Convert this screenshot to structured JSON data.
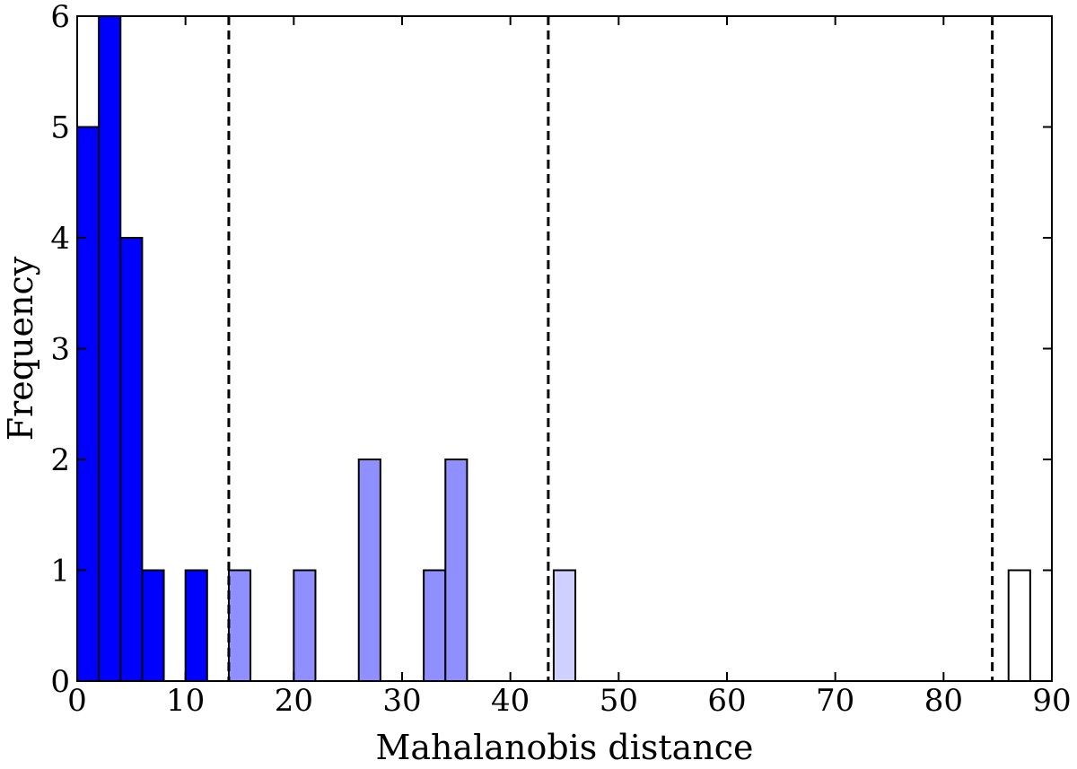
{
  "chart_data": {
    "type": "bar",
    "xlabel": "Mahalanobis distance",
    "ylabel": "Frequency",
    "xlim": [
      0,
      90
    ],
    "ylim": [
      0,
      6
    ],
    "xticks": [
      0,
      10,
      20,
      30,
      40,
      50,
      60,
      70,
      80,
      90
    ],
    "yticks": [
      0,
      1,
      2,
      3,
      4,
      5,
      6
    ],
    "xtick_labels": [
      "0",
      "10",
      "20",
      "30",
      "40",
      "50",
      "60",
      "70",
      "80",
      "90"
    ],
    "ytick_labels": [
      "0",
      "1",
      "2",
      "3",
      "4",
      "5",
      "6"
    ],
    "grid": false,
    "thresholds": [
      14,
      43.5,
      84.5
    ],
    "bin_width": 2,
    "bins": [
      {
        "x0": 0,
        "x1": 2,
        "value": 5,
        "group": "dark"
      },
      {
        "x0": 2,
        "x1": 4,
        "value": 6,
        "group": "dark"
      },
      {
        "x0": 4,
        "x1": 6,
        "value": 4,
        "group": "dark"
      },
      {
        "x0": 6,
        "x1": 8,
        "value": 1,
        "group": "dark"
      },
      {
        "x0": 10,
        "x1": 12,
        "value": 1,
        "group": "dark"
      },
      {
        "x0": 14,
        "x1": 16,
        "value": 1,
        "group": "medium"
      },
      {
        "x0": 20,
        "x1": 22,
        "value": 1,
        "group": "medium"
      },
      {
        "x0": 26,
        "x1": 28,
        "value": 2,
        "group": "medium"
      },
      {
        "x0": 32,
        "x1": 34,
        "value": 1,
        "group": "medium"
      },
      {
        "x0": 34,
        "x1": 36,
        "value": 2,
        "group": "medium"
      },
      {
        "x0": 44,
        "x1": 46,
        "value": 1,
        "group": "light"
      },
      {
        "x0": 86,
        "x1": 88,
        "value": 1,
        "group": "white"
      }
    ],
    "colors": {
      "dark": "#0000ff",
      "medium": "#8f8fff",
      "light": "#d0d0ff",
      "white": "#ffffff",
      "outline": "#000000"
    }
  }
}
